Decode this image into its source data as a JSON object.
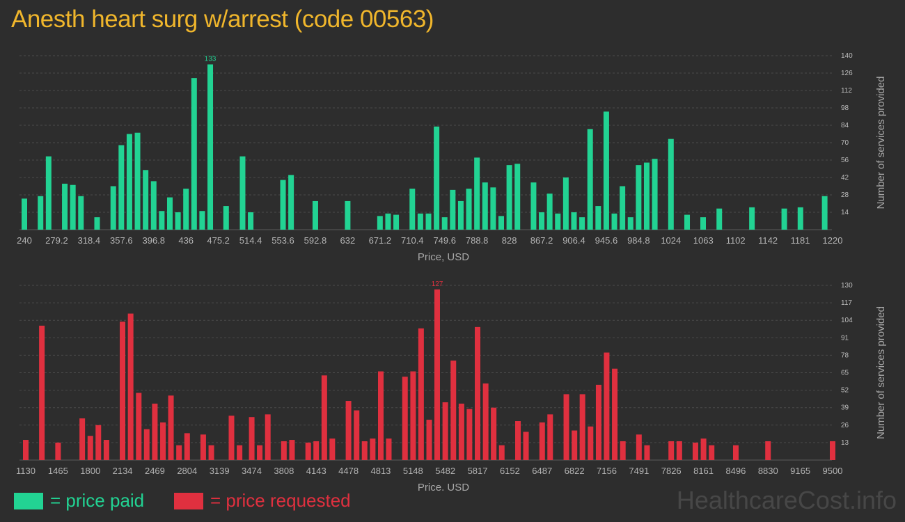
{
  "page": {
    "title": "Anesth heart surg w/arrest (code 00563)",
    "watermark": "HealthcareCost.info"
  },
  "legend": {
    "paid": {
      "label": "= price paid",
      "color": "#22d393"
    },
    "requested": {
      "label": "= price requested",
      "color": "#e0303f"
    }
  },
  "chart_data": [
    {
      "type": "bar",
      "title": "",
      "xlabel": "Price, USD",
      "ylabel": "Number of services provided",
      "color": "#22d393",
      "xlim": [
        240,
        1220
      ],
      "ylim": [
        0,
        140
      ],
      "x_ticks": [
        "240",
        "279.2",
        "318.4",
        "357.6",
        "396.8",
        "436",
        "475.2",
        "514.4",
        "553.6",
        "592.8",
        "632",
        "671.2",
        "710.4",
        "749.6",
        "788.8",
        "828",
        "867.2",
        "906.4",
        "945.6",
        "984.8",
        "1024",
        "1063",
        "1102",
        "1142",
        "1181",
        "1220"
      ],
      "y_ticks": [
        14,
        28,
        42,
        56,
        70,
        84,
        98,
        112,
        126,
        140
      ],
      "peak_label": "133",
      "x": [
        240,
        259.6,
        269.4,
        289,
        298.8,
        308.6,
        328.2,
        347.8,
        357.6,
        367.4,
        377.2,
        387,
        396.8,
        406.6,
        416.4,
        426.2,
        436,
        445.8,
        455.6,
        465.4,
        484.6,
        504.6,
        514.4,
        553.6,
        563.4,
        592.8,
        632,
        671.2,
        681,
        690.8,
        710.4,
        720.2,
        730,
        739.8,
        749.6,
        759.4,
        769.2,
        779,
        788.8,
        798.6,
        808.4,
        818.2,
        828,
        837.8,
        857.4,
        867.2,
        877,
        886.8,
        896.6,
        906.4,
        916.2,
        926,
        935.8,
        945.6,
        955.4,
        965.2,
        975,
        984.8,
        994.6,
        1004.4,
        1024,
        1043.6,
        1063,
        1082.6,
        1122.2,
        1161.4,
        1181,
        1210.4
      ],
      "values": [
        25,
        27,
        59,
        37,
        36,
        27,
        10,
        35,
        68,
        77,
        78,
        48,
        39,
        15,
        26,
        14,
        33,
        122,
        15,
        133,
        19,
        59,
        14,
        40,
        44,
        23,
        23,
        11,
        13,
        12,
        33,
        13,
        13,
        83,
        10,
        32,
        23,
        33,
        58,
        38,
        34,
        11,
        52,
        53,
        38,
        14,
        29,
        13,
        42,
        14,
        10,
        81,
        19,
        95,
        13,
        35,
        10,
        52,
        54,
        57,
        73,
        12,
        10,
        17,
        18,
        17,
        18,
        27
      ]
    },
    {
      "type": "bar",
      "title": "",
      "xlabel": "Price, USD",
      "ylabel": "Number of services provided",
      "color": "#e0303f",
      "xlim": [
        1130,
        9500
      ],
      "ylim": [
        0,
        130
      ],
      "x_ticks": [
        "1130",
        "1465",
        "1800",
        "2134",
        "2469",
        "2804",
        "3139",
        "3474",
        "3808",
        "4143",
        "4478",
        "4813",
        "5148",
        "5482",
        "5817",
        "6152",
        "6487",
        "6822",
        "7156",
        "7491",
        "7826",
        "8161",
        "8496",
        "8830",
        "9165",
        "9500"
      ],
      "y_ticks": [
        13,
        26,
        39,
        52,
        65,
        78,
        91,
        104,
        117,
        130
      ],
      "peak_label": "127",
      "x": [
        1130,
        1297,
        1465,
        1716,
        1800,
        1883,
        1967,
        2134,
        2218,
        2302,
        2385,
        2469,
        2553,
        2636,
        2720,
        2804,
        2971,
        3055,
        3264,
        3348,
        3474,
        3557,
        3641,
        3808,
        3892,
        4060,
        4143,
        4227,
        4310,
        4478,
        4562,
        4645,
        4729,
        4813,
        4896,
        5064,
        5148,
        5231,
        5315,
        5398,
        5482,
        5566,
        5650,
        5733,
        5817,
        5901,
        5984,
        6068,
        6236,
        6319,
        6487,
        6570,
        6738,
        6822,
        6905,
        6989,
        7073,
        7156,
        7240,
        7324,
        7491,
        7575,
        7826,
        7910,
        8077,
        8161,
        8245,
        8496,
        8830,
        9500
      ],
      "values": [
        15,
        100,
        13,
        31,
        18,
        26,
        15,
        103,
        109,
        50,
        23,
        42,
        28,
        48,
        11,
        20,
        19,
        11,
        33,
        11,
        32,
        11,
        34,
        14,
        15,
        13,
        14,
        63,
        16,
        44,
        37,
        14,
        16,
        66,
        16,
        62,
        66,
        98,
        30,
        127,
        43,
        74,
        42,
        38,
        99,
        57,
        39,
        11,
        29,
        21,
        28,
        34,
        49,
        22,
        49,
        25,
        56,
        80,
        68,
        14,
        19,
        11,
        14,
        14,
        13,
        16,
        11,
        11,
        14,
        14
      ]
    }
  ]
}
